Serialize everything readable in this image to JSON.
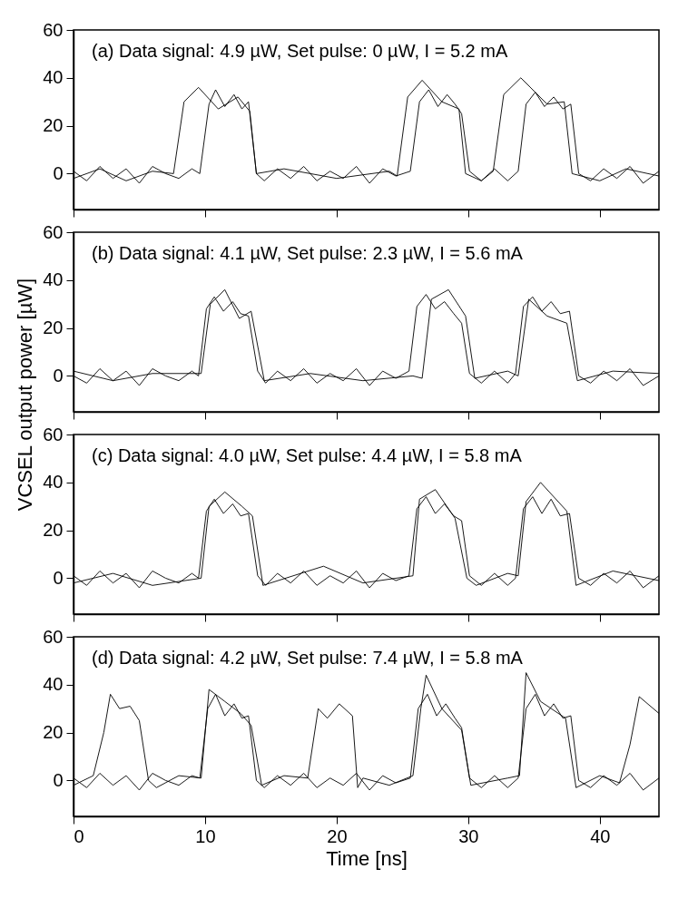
{
  "chart_data": [
    {
      "type": "line",
      "annotations": [
        "(a) Data signal: 4.9 µW, Set pulse: 0 µW, I = 5.2 mA"
      ],
      "ylabel": "VCSEL output power [µW]",
      "xlim": [
        0,
        44.5
      ],
      "ylim": [
        -15,
        60
      ],
      "yticks": [
        0,
        20,
        40,
        60
      ],
      "xticks": [
        0,
        10,
        20,
        30,
        40
      ],
      "tick_labels": "y",
      "grid": false,
      "marker": "none",
      "line_style": "solid",
      "series": [
        {
          "color": "#000000",
          "x": [
            0,
            1,
            2,
            3,
            4,
            5,
            6,
            7,
            8,
            9,
            9.6,
            10.3,
            10.8,
            11.5,
            12.2,
            12.8,
            13.3,
            13.9,
            14.5,
            15.5,
            16.5,
            17.5,
            18.5,
            19.5,
            20.5,
            21.5,
            22.5,
            23.5,
            24.5,
            25.6,
            26.3,
            27,
            27.7,
            28.4,
            29,
            29.5,
            30.1,
            31,
            32,
            33,
            33.8,
            34.4,
            35.1,
            35.8,
            36.5,
            37.2,
            37.8,
            38.4,
            39.3,
            40.3,
            41.3,
            42.3,
            43.3,
            44.5
          ],
          "values": [
            1,
            -3,
            3,
            -2,
            2,
            -4,
            3,
            0,
            -2,
            2,
            0,
            29,
            35,
            28,
            33,
            27,
            30,
            0,
            -3,
            2,
            -2,
            3,
            -3,
            1,
            -2,
            3,
            -4,
            2,
            -1,
            1,
            30,
            35,
            28,
            33,
            29,
            25,
            1,
            -3,
            2,
            -3,
            1,
            29,
            34,
            28,
            32,
            27,
            29,
            0,
            -3,
            2,
            -2,
            3,
            -4,
            1
          ]
        },
        {
          "color": "#000000",
          "x": [
            0,
            2,
            4,
            6,
            7.6,
            8.4,
            9.5,
            11,
            12.5,
            13.4,
            13.9,
            16,
            20,
            24,
            24.6,
            25.4,
            26.5,
            28,
            29.3,
            29.8,
            31,
            31.9,
            32.7,
            34,
            36,
            37.3,
            37.9,
            40,
            42,
            44.5
          ],
          "values": [
            -2,
            2,
            -3,
            1,
            0,
            30,
            36,
            27,
            32,
            26,
            0,
            2,
            -2,
            1,
            -1,
            32,
            39,
            30,
            27,
            0,
            -3,
            1,
            33,
            40,
            29,
            30,
            0,
            -3,
            2,
            -1
          ]
        }
      ]
    },
    {
      "type": "line",
      "annotations": [
        "(b) Data signal: 4.1 µW, Set pulse: 2.3 µW, I = 5.6 mA"
      ],
      "xlim": [
        0,
        44.5
      ],
      "ylim": [
        -15,
        60
      ],
      "yticks": [
        0,
        20,
        40,
        60
      ],
      "xticks": [
        0,
        10,
        20,
        30,
        40
      ],
      "tick_labels": "y",
      "grid": false,
      "marker": "none",
      "line_style": "solid",
      "series": [
        {
          "color": "#000000",
          "x": [
            0,
            1,
            2,
            3,
            4,
            5,
            6,
            7,
            8,
            9,
            9.5,
            10.1,
            10.7,
            11.4,
            12.1,
            12.7,
            13.3,
            14,
            14.6,
            15.5,
            16.5,
            17.5,
            18.5,
            19.5,
            20.5,
            21.5,
            22.5,
            23.5,
            24.5,
            25.5,
            26.1,
            26.8,
            27.5,
            28.2,
            28.9,
            29.5,
            30.1,
            31,
            32,
            33,
            33.6,
            34.2,
            34.9,
            35.6,
            36.3,
            37,
            37.7,
            38.4,
            39.3,
            40.3,
            41.3,
            42.3,
            43.3,
            44.5
          ],
          "values": [
            0,
            -3,
            3,
            -2,
            2,
            -4,
            3,
            0,
            -2,
            2,
            0,
            28,
            33,
            27,
            31,
            26,
            25,
            2,
            -3,
            2,
            -2,
            3,
            -3,
            1,
            -2,
            3,
            -4,
            2,
            -1,
            2,
            29,
            34,
            28,
            31,
            26,
            22,
            1,
            -3,
            2,
            -3,
            1,
            29,
            33,
            27,
            31,
            26,
            27,
            0,
            -3,
            2,
            -2,
            3,
            -4,
            0
          ]
        },
        {
          "color": "#000000",
          "x": [
            0,
            3,
            6,
            9.7,
            10.4,
            11.5,
            12.6,
            13.5,
            14.5,
            18,
            22,
            25.8,
            26.5,
            27.2,
            28.5,
            29.8,
            30.5,
            33,
            33.8,
            34.6,
            36,
            37.5,
            38.3,
            41,
            44.5
          ],
          "values": [
            2,
            -2,
            1,
            1,
            30,
            36,
            24,
            27,
            -2,
            1,
            -2,
            0,
            -1,
            32,
            36,
            25,
            -1,
            2,
            0,
            32,
            25,
            22,
            -2,
            2,
            1
          ]
        }
      ]
    },
    {
      "type": "line",
      "annotations": [
        "(c) Data signal: 4.0 µW, Set pulse: 4.4 µW, I = 5.8 mA"
      ],
      "xlim": [
        0,
        44.5
      ],
      "ylim": [
        -15,
        60
      ],
      "yticks": [
        0,
        20,
        40,
        60
      ],
      "xticks": [
        0,
        10,
        20,
        30,
        40
      ],
      "tick_labels": "y",
      "grid": false,
      "marker": "none",
      "line_style": "solid",
      "series": [
        {
          "color": "#000000",
          "x": [
            0,
            1,
            2,
            3,
            4,
            5,
            6,
            7,
            8,
            9,
            9.5,
            10.1,
            10.7,
            11.4,
            12.1,
            12.7,
            13.3,
            14,
            14.6,
            15.5,
            16.5,
            17.5,
            18.5,
            19.5,
            20.5,
            21.5,
            22.5,
            23.5,
            24.5,
            25.5,
            26.1,
            26.8,
            27.5,
            28.2,
            28.9,
            29.5,
            30.1,
            31,
            32,
            33,
            33.6,
            34.2,
            34.9,
            35.6,
            36.3,
            37,
            37.7,
            38.4,
            39.3,
            40.3,
            41.3,
            42.3,
            43.3,
            44.5
          ],
          "values": [
            1,
            -3,
            3,
            -2,
            2,
            -4,
            3,
            0,
            -2,
            2,
            0,
            28,
            33,
            27,
            31,
            26,
            27,
            1,
            -3,
            2,
            -2,
            3,
            -3,
            1,
            -2,
            3,
            -4,
            2,
            -1,
            1,
            29,
            34,
            27,
            31,
            26,
            24,
            1,
            -3,
            2,
            -3,
            0,
            29,
            34,
            27,
            33,
            26,
            27,
            0,
            -3,
            2,
            -2,
            3,
            -4,
            1
          ]
        },
        {
          "color": "#000000",
          "x": [
            0,
            3,
            6,
            9.7,
            10.3,
            11.5,
            12.8,
            13.6,
            14.4,
            19,
            22,
            25.8,
            26.3,
            27.5,
            29,
            29.9,
            30.6,
            33,
            33.8,
            34.4,
            35.5,
            37.5,
            38.2,
            41,
            44.5
          ],
          "values": [
            -2,
            2,
            -3,
            0,
            30,
            36,
            30,
            26,
            -3,
            5,
            -2,
            1,
            33,
            37,
            25,
            0,
            -3,
            2,
            1,
            32,
            40,
            28,
            -3,
            3,
            -1
          ]
        }
      ]
    },
    {
      "type": "line",
      "annotations": [
        "(d) Data signal: 4.2 µW, Set pulse: 7.4 µW, I = 5.8 mA"
      ],
      "xlabel": "Time [ns]",
      "xlim": [
        0,
        44.5
      ],
      "ylim": [
        -15,
        60
      ],
      "yticks": [
        0,
        20,
        40,
        60
      ],
      "xticks": [
        0,
        10,
        20,
        30,
        40
      ],
      "grid": false,
      "marker": "none",
      "line_style": "solid",
      "series": [
        {
          "color": "#000000",
          "x": [
            0,
            1,
            2,
            3,
            4,
            5,
            6,
            7,
            8,
            9,
            9.6,
            10.2,
            10.8,
            11.5,
            12.2,
            12.8,
            13.3,
            13.9,
            14.5,
            15.5,
            16.5,
            17.5,
            18.5,
            19.5,
            20.5,
            21.5,
            22.5,
            23.5,
            24.5,
            25.6,
            26.2,
            26.9,
            27.6,
            28.3,
            29,
            29.5,
            30.1,
            31,
            32,
            33,
            33.8,
            34.4,
            35.1,
            35.8,
            36.5,
            37.2,
            37.8,
            38.4,
            39.3,
            40.3,
            41.3,
            42.3,
            43.3,
            44.5
          ],
          "values": [
            1,
            -3,
            3,
            -2,
            2,
            -4,
            3,
            0,
            -2,
            2,
            1,
            30,
            36,
            27,
            32,
            26,
            27,
            0,
            -3,
            2,
            -2,
            3,
            -3,
            1,
            -2,
            3,
            -4,
            2,
            -1,
            1,
            30,
            36,
            27,
            32,
            26,
            22,
            1,
            -3,
            2,
            -3,
            1,
            30,
            36,
            27,
            32,
            26,
            27,
            0,
            -3,
            2,
            -2,
            3,
            -4,
            1
          ]
        },
        {
          "color": "#000000",
          "x": [
            0,
            1.5,
            2.3,
            2.8,
            3.5,
            4.3,
            5,
            5.7,
            6.3,
            8,
            9.7,
            10.3,
            11.5,
            12.7,
            13.5,
            14.3,
            16,
            17.8,
            18.6,
            19.3,
            20.2,
            21.2,
            21.6,
            22,
            24,
            25.8,
            26.4,
            26.8,
            28,
            29.5,
            30.2,
            33,
            33.9,
            34.4,
            35.5,
            37.4,
            38.2,
            40,
            41.5,
            42.3,
            43,
            44.5
          ],
          "values": [
            -2,
            2,
            20,
            36,
            30,
            31,
            25,
            0,
            -3,
            2,
            1,
            38,
            33,
            28,
            23,
            -2,
            2,
            1,
            30,
            26,
            32,
            27,
            -3,
            1,
            -2,
            2,
            30,
            44,
            30,
            21,
            -2,
            1,
            2,
            45,
            33,
            26,
            -3,
            2,
            -1,
            15,
            35,
            28
          ]
        }
      ]
    }
  ]
}
